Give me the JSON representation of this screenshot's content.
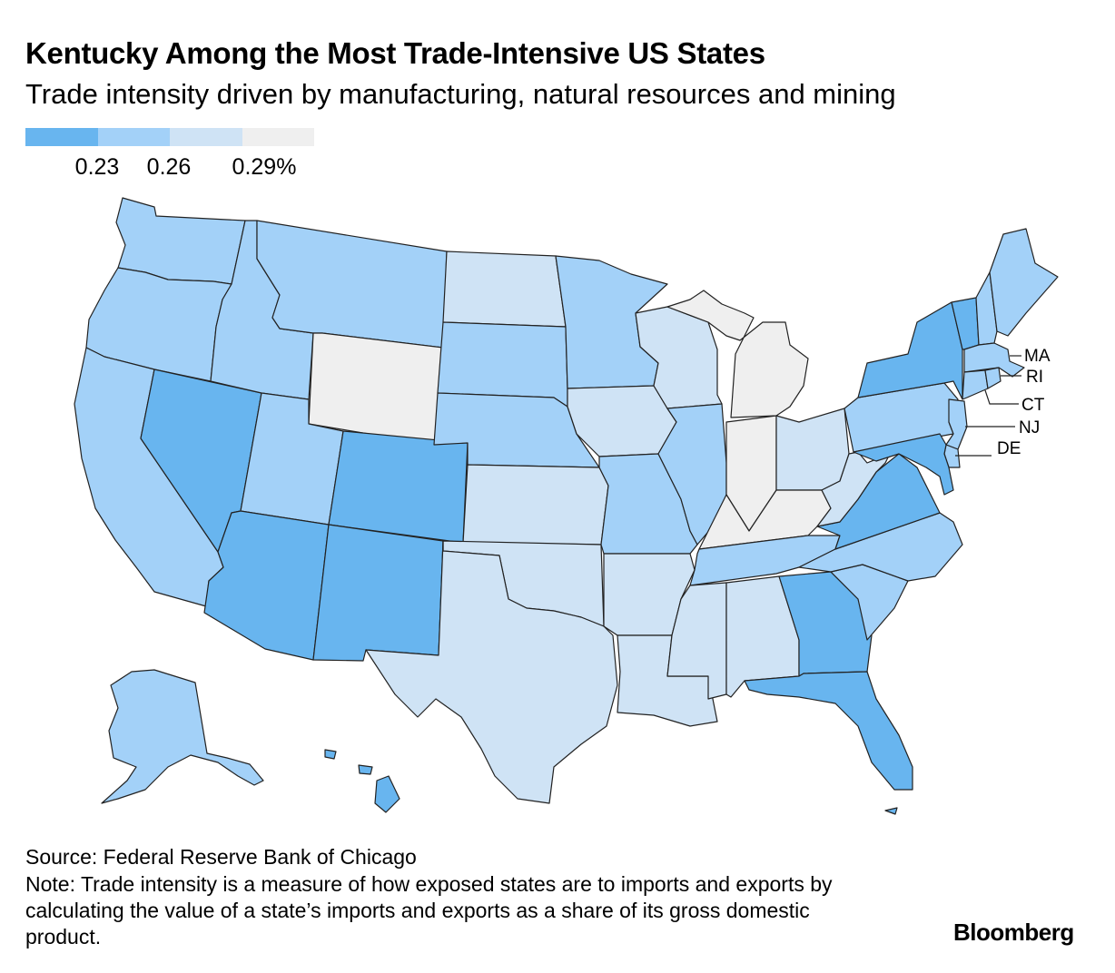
{
  "title": "Kentucky Among the Most Trade-Intensive US States",
  "subtitle": "Trade intensity driven by manufacturing, natural resources and mining",
  "legend": {
    "colors": [
      "#68b5ef",
      "#a3d1f8",
      "#cfe3f5",
      "#efefef"
    ],
    "ticks": [
      "0.23",
      "0.26",
      "0.29%"
    ]
  },
  "callouts": {
    "ma": "MA",
    "ri": "RI",
    "ct": "CT",
    "nj": "NJ",
    "de": "DE"
  },
  "source": "Source: Federal Reserve Bank of Chicago",
  "note": "Note: Trade intensity is a measure of how exposed states are to imports and exports by calculating the value of a state’s imports and exports as a share of its gross domestic product.",
  "brand": "Bloomberg",
  "chart_data": {
    "type": "choropleth",
    "legend_bins": [
      {
        "range": "below 0.23",
        "color": "#68b5ef"
      },
      {
        "range": "0.23–0.26",
        "color": "#a3d1f8"
      },
      {
        "range": "0.26–0.29",
        "color": "#cfe3f5"
      },
      {
        "range": "0.29% and above",
        "color": "#efefef"
      }
    ],
    "states": {
      "WA": 1,
      "OR": 1,
      "CA": 1,
      "ID": 1,
      "MT": 1,
      "WY": 3,
      "NV": 0,
      "UT": 1,
      "AZ": 0,
      "CO": 0,
      "NM": 0,
      "ND": 2,
      "SD": 1,
      "NE": 1,
      "KS": 2,
      "OK": 2,
      "TX": 2,
      "MN": 1,
      "IA": 2,
      "MO": 1,
      "AR": 2,
      "LA": 2,
      "WI": 2,
      "IL": 1,
      "MI": 3,
      "IN": 3,
      "OH": 2,
      "KY": 3,
      "TN": 1,
      "MS": 2,
      "AL": 2,
      "GA": 0,
      "FL": 0,
      "SC": 1,
      "NC": 1,
      "VA": 0,
      "WV": 2,
      "PA": 1,
      "NY": 0,
      "VT": 0,
      "NH": 1,
      "ME": 1,
      "MA": 1,
      "RI": 1,
      "CT": 1,
      "NJ": 1,
      "DE": 1,
      "MD": 0,
      "AK": 1,
      "HI": 0
    }
  }
}
